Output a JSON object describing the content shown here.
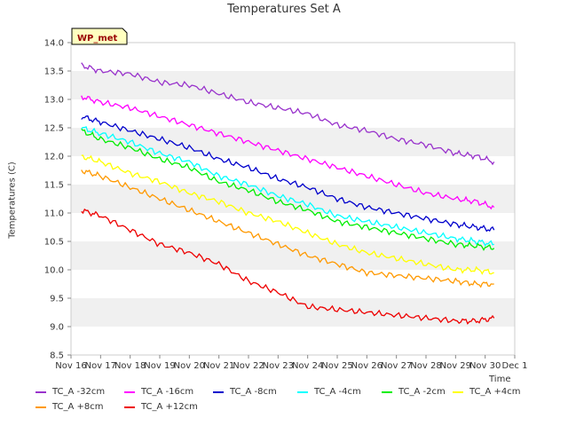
{
  "chart_data": {
    "type": "line",
    "title": "Temperatures Set A",
    "ylabel": "Temperatures (C)",
    "xlabel": "Time",
    "ylim": [
      8.5,
      14.0
    ],
    "yticks": [
      "8.5",
      "9.0",
      "9.5",
      "10.0",
      "10.5",
      "11.0",
      "11.5",
      "12.0",
      "12.5",
      "13.0",
      "13.5",
      "14.0"
    ],
    "xlim": [
      16,
      31
    ],
    "xtick_labels": [
      "Nov 16",
      "Nov 17",
      "Nov 18",
      "Nov 19",
      "Nov 20",
      "Nov 21",
      "Nov 22",
      "Nov 23",
      "Nov 24",
      "Nov 25",
      "Nov 26",
      "Nov 27",
      "Nov 28",
      "Nov 29",
      "Nov 30",
      "Dec 1"
    ],
    "grid": "horizontal bands",
    "annotation": "WP_met",
    "legend_position": "bottom",
    "x_days": [
      16.35,
      17,
      18,
      19,
      20,
      21,
      22,
      23,
      24,
      25,
      26,
      27,
      28,
      29,
      29.7,
      30.3
    ],
    "series": [
      {
        "name": "TC_A -32cm",
        "color": "#9933cc",
        "values": [
          13.6,
          13.5,
          13.45,
          13.3,
          13.25,
          13.1,
          12.95,
          12.85,
          12.75,
          12.55,
          12.45,
          12.3,
          12.2,
          12.05,
          12.0,
          11.9
        ]
      },
      {
        "name": "TC_A -16cm",
        "color": "#ff00ff",
        "values": [
          13.05,
          12.95,
          12.85,
          12.7,
          12.55,
          12.4,
          12.25,
          12.1,
          11.95,
          11.8,
          11.65,
          11.5,
          11.35,
          11.25,
          11.2,
          11.1
        ]
      },
      {
        "name": "TC_A -8cm",
        "color": "#0000cc",
        "values": [
          12.7,
          12.6,
          12.45,
          12.3,
          12.15,
          11.95,
          11.8,
          11.6,
          11.45,
          11.25,
          11.1,
          11.0,
          10.9,
          10.8,
          10.75,
          10.7
        ]
      },
      {
        "name": "TC_A -4cm",
        "color": "#00ffff",
        "values": [
          12.5,
          12.4,
          12.25,
          12.05,
          11.9,
          11.65,
          11.5,
          11.3,
          11.15,
          10.95,
          10.85,
          10.75,
          10.65,
          10.55,
          10.5,
          10.45
        ]
      },
      {
        "name": "TC_A -2cm",
        "color": "#00ee00",
        "values": [
          12.45,
          12.3,
          12.15,
          11.95,
          11.8,
          11.55,
          11.4,
          11.2,
          11.05,
          10.85,
          10.75,
          10.65,
          10.55,
          10.45,
          10.42,
          10.38
        ]
      },
      {
        "name": "TC_A +4cm",
        "color": "#ffff00",
        "values": [
          12.0,
          11.9,
          11.7,
          11.55,
          11.35,
          11.2,
          11.0,
          10.85,
          10.65,
          10.45,
          10.3,
          10.2,
          10.1,
          10.0,
          10.0,
          9.95
        ]
      },
      {
        "name": "TC_A +8cm",
        "color": "#ff9900",
        "values": [
          11.75,
          11.65,
          11.45,
          11.25,
          11.05,
          10.85,
          10.65,
          10.45,
          10.25,
          10.1,
          9.95,
          9.9,
          9.85,
          9.8,
          9.75,
          9.75
        ]
      },
      {
        "name": "TC_A +12cm",
        "color": "#ee0000",
        "values": [
          11.05,
          10.95,
          10.7,
          10.45,
          10.3,
          10.1,
          9.8,
          9.6,
          9.35,
          9.3,
          9.25,
          9.2,
          9.15,
          9.1,
          9.1,
          9.15
        ]
      }
    ]
  }
}
